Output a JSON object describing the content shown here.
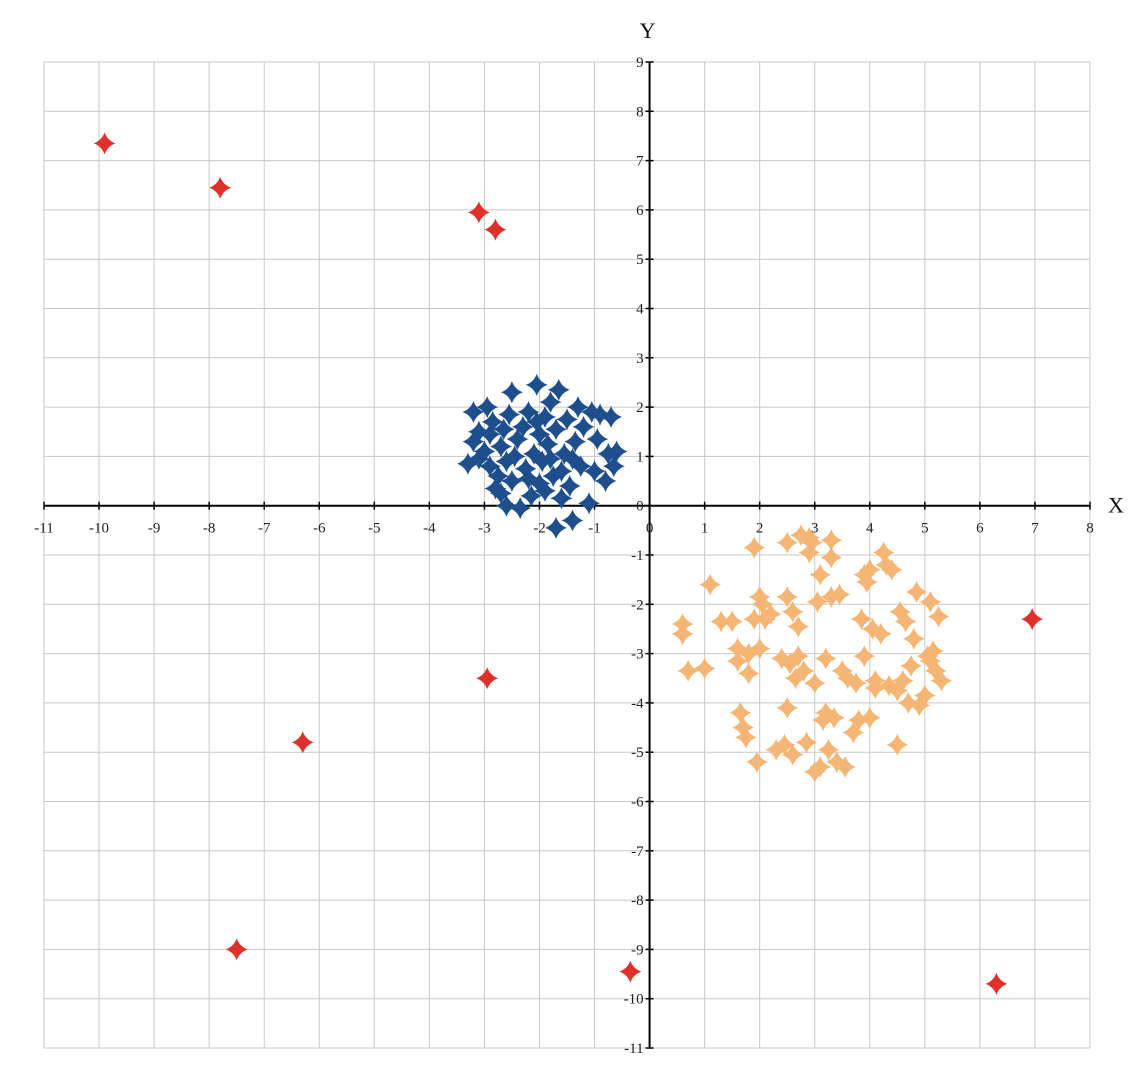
{
  "chart_data": {
    "type": "scatter",
    "title": "",
    "xlabel": "X",
    "ylabel": "Y",
    "xlim": [
      -11,
      8
    ],
    "ylim": [
      -11,
      9
    ],
    "x_ticks": [
      -11,
      -10,
      -9,
      -8,
      -7,
      -6,
      -5,
      -4,
      -3,
      -2,
      -1,
      0,
      1,
      2,
      3,
      4,
      5,
      6,
      7,
      8
    ],
    "y_ticks": [
      -11,
      -10,
      -9,
      -8,
      -7,
      -6,
      -5,
      -4,
      -3,
      -2,
      -1,
      0,
      1,
      2,
      3,
      4,
      5,
      6,
      7,
      8,
      9
    ],
    "grid": true,
    "marker": "four-point-star",
    "series": [
      {
        "color": "#1f4e8c",
        "points": [
          [
            -3.3,
            0.85
          ],
          [
            -3.2,
            1.3
          ],
          [
            -3.2,
            1.9
          ],
          [
            -3.1,
            1.5
          ],
          [
            -3.0,
            1.1
          ],
          [
            -2.95,
            2.0
          ],
          [
            -2.9,
            0.8
          ],
          [
            -2.85,
            1.7
          ],
          [
            -2.8,
            0.35
          ],
          [
            -2.75,
            0.6
          ],
          [
            -2.7,
            1.2
          ],
          [
            -2.65,
            1.55
          ],
          [
            -2.6,
            0.0
          ],
          [
            -2.6,
            0.9
          ],
          [
            -2.55,
            1.85
          ],
          [
            -2.5,
            2.3
          ],
          [
            -2.5,
            0.5
          ],
          [
            -2.4,
            1.35
          ],
          [
            -2.35,
            -0.05
          ],
          [
            -2.3,
            1.6
          ],
          [
            -2.25,
            0.75
          ],
          [
            -2.2,
            1.9
          ],
          [
            -2.15,
            0.2
          ],
          [
            -2.1,
            1.05
          ],
          [
            -2.05,
            2.45
          ],
          [
            -2.0,
            0.45
          ],
          [
            -2.0,
            1.45
          ],
          [
            -1.95,
            0.9
          ],
          [
            -1.9,
            1.8
          ],
          [
            -1.85,
            1.25
          ],
          [
            -1.8,
            2.1
          ],
          [
            -1.75,
            0.6
          ],
          [
            -1.7,
            -0.45
          ],
          [
            -1.7,
            1.55
          ],
          [
            -1.65,
            2.35
          ],
          [
            -1.6,
            0.15
          ],
          [
            -1.55,
            1.05
          ],
          [
            -1.5,
            1.75
          ],
          [
            -1.45,
            0.4
          ],
          [
            -1.4,
            -0.3
          ],
          [
            -1.35,
            1.3
          ],
          [
            -1.3,
            2.0
          ],
          [
            -1.25,
            0.8
          ],
          [
            -1.2,
            1.6
          ],
          [
            -1.1,
            0.05
          ],
          [
            -1.05,
            1.9
          ],
          [
            -1.0,
            0.7
          ],
          [
            -0.95,
            1.35
          ],
          [
            -0.9,
            1.85
          ],
          [
            -0.8,
            0.5
          ],
          [
            -0.75,
            1.05
          ],
          [
            -0.7,
            1.8
          ],
          [
            -0.65,
            0.8
          ],
          [
            -0.6,
            1.1
          ],
          [
            -3.1,
            0.95
          ],
          [
            -2.9,
            1.45
          ],
          [
            -2.2,
            0.55
          ],
          [
            -1.9,
            0.3
          ],
          [
            -1.6,
            0.7
          ],
          [
            -1.4,
            0.95
          ],
          [
            -2.7,
            0.25
          ],
          [
            -2.45,
            1.0
          ],
          [
            -2.05,
            1.7
          ],
          [
            -1.8,
            0.95
          ]
        ]
      },
      {
        "color": "#f5b575",
        "points": [
          [
            0.6,
            -2.4
          ],
          [
            0.6,
            -2.6
          ],
          [
            0.7,
            -3.35
          ],
          [
            1.0,
            -3.3
          ],
          [
            1.1,
            -1.6
          ],
          [
            1.3,
            -2.35
          ],
          [
            1.5,
            -2.35
          ],
          [
            1.6,
            -2.9
          ],
          [
            1.6,
            -3.15
          ],
          [
            1.65,
            -4.2
          ],
          [
            1.7,
            -4.5
          ],
          [
            1.75,
            -4.7
          ],
          [
            1.8,
            -3.0
          ],
          [
            1.8,
            -3.4
          ],
          [
            1.9,
            -0.85
          ],
          [
            1.9,
            -2.3
          ],
          [
            1.95,
            -5.2
          ],
          [
            2.0,
            -1.85
          ],
          [
            2.0,
            -2.9
          ],
          [
            2.05,
            -2.0
          ],
          [
            2.1,
            -2.3
          ],
          [
            2.2,
            -2.2
          ],
          [
            2.3,
            -4.95
          ],
          [
            2.4,
            -3.1
          ],
          [
            2.45,
            -4.85
          ],
          [
            2.5,
            -1.85
          ],
          [
            2.5,
            -4.1
          ],
          [
            2.5,
            -0.75
          ],
          [
            2.55,
            -3.2
          ],
          [
            2.6,
            -2.15
          ],
          [
            2.6,
            -5.05
          ],
          [
            2.65,
            -3.5
          ],
          [
            2.7,
            -3.05
          ],
          [
            2.7,
            -2.45
          ],
          [
            2.75,
            -0.6
          ],
          [
            2.8,
            -3.35
          ],
          [
            2.85,
            -4.8
          ],
          [
            2.9,
            -0.65
          ],
          [
            2.9,
            -0.95
          ],
          [
            2.95,
            -0.75
          ],
          [
            3.0,
            -3.6
          ],
          [
            3.0,
            -5.4
          ],
          [
            3.05,
            -1.95
          ],
          [
            3.1,
            -1.4
          ],
          [
            3.1,
            -5.3
          ],
          [
            3.15,
            -4.35
          ],
          [
            3.2,
            -3.1
          ],
          [
            3.2,
            -4.2
          ],
          [
            3.25,
            -4.95
          ],
          [
            3.3,
            -0.7
          ],
          [
            3.3,
            -1.05
          ],
          [
            3.3,
            -1.85
          ],
          [
            3.35,
            -4.3
          ],
          [
            3.4,
            -5.2
          ],
          [
            3.45,
            -1.8
          ],
          [
            3.5,
            -3.35
          ],
          [
            3.55,
            -5.3
          ],
          [
            3.6,
            -3.5
          ],
          [
            3.7,
            -4.6
          ],
          [
            3.75,
            -3.6
          ],
          [
            3.8,
            -4.35
          ],
          [
            3.85,
            -2.3
          ],
          [
            3.9,
            -1.4
          ],
          [
            3.9,
            -3.05
          ],
          [
            3.95,
            -1.55
          ],
          [
            4.0,
            -1.3
          ],
          [
            4.0,
            -4.3
          ],
          [
            4.05,
            -2.5
          ],
          [
            4.1,
            -3.55
          ],
          [
            4.1,
            -3.7
          ],
          [
            4.2,
            -2.6
          ],
          [
            4.25,
            -0.95
          ],
          [
            4.3,
            -1.2
          ],
          [
            4.35,
            -3.65
          ],
          [
            4.4,
            -1.3
          ],
          [
            4.5,
            -3.75
          ],
          [
            4.5,
            -4.85
          ],
          [
            4.55,
            -2.15
          ],
          [
            4.6,
            -3.55
          ],
          [
            4.65,
            -2.35
          ],
          [
            4.7,
            -4.0
          ],
          [
            4.75,
            -3.25
          ],
          [
            4.8,
            -2.7
          ],
          [
            4.85,
            -1.75
          ],
          [
            4.9,
            -4.05
          ],
          [
            5.0,
            -3.85
          ],
          [
            5.05,
            -3.05
          ],
          [
            5.1,
            -1.95
          ],
          [
            5.1,
            -3.15
          ],
          [
            5.15,
            -2.95
          ],
          [
            5.2,
            -3.35
          ],
          [
            5.25,
            -2.25
          ],
          [
            5.3,
            -3.55
          ]
        ]
      },
      {
        "color": "#e0302a",
        "points": [
          [
            -9.9,
            7.35
          ],
          [
            -7.8,
            6.45
          ],
          [
            -3.1,
            5.95
          ],
          [
            -2.8,
            5.6
          ],
          [
            -2.95,
            -3.5
          ],
          [
            -6.3,
            -4.8
          ],
          [
            -7.5,
            -9.0
          ],
          [
            -0.35,
            -9.45
          ],
          [
            6.95,
            -2.3
          ],
          [
            6.3,
            -9.7
          ]
        ]
      }
    ]
  }
}
